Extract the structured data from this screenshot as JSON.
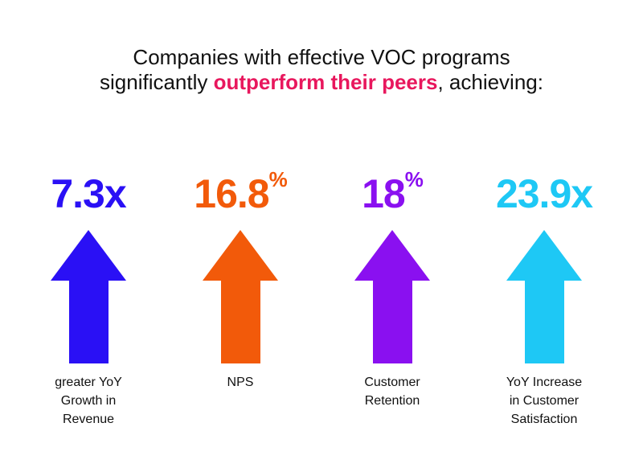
{
  "title": {
    "line1": "Companies with effective VOC programs",
    "line2_prefix": "significantly ",
    "line2_highlight": "outperform their peers",
    "line2_suffix": ", achieving:",
    "highlight_color": "#e8175d"
  },
  "stats": [
    {
      "value": "7.3x",
      "suffix": "",
      "label_lines": [
        "greater YoY",
        "Growth in",
        "Revenue"
      ],
      "color": "#2a10f5",
      "icon": "up-arrow-icon"
    },
    {
      "value": "16.8",
      "suffix": "%",
      "label_lines": [
        "NPS"
      ],
      "color": "#f25a0a",
      "icon": "up-arrow-icon"
    },
    {
      "value": "18",
      "suffix": "%",
      "label_lines": [
        "Customer",
        "Retention"
      ],
      "color": "#8a10f0",
      "icon": "up-arrow-icon"
    },
    {
      "value": "23.9x",
      "suffix": "",
      "label_lines": [
        "YoY Increase",
        "in Customer",
        "Satisfaction"
      ],
      "color": "#1ec8f5",
      "icon": "up-arrow-icon"
    }
  ]
}
